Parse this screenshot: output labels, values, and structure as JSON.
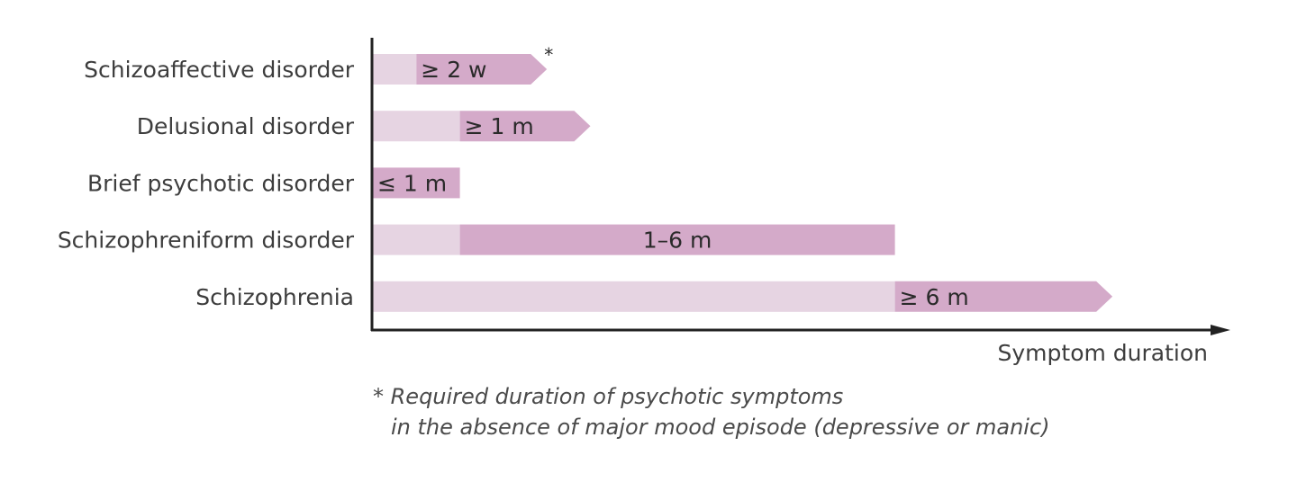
{
  "chart_data": {
    "type": "bar",
    "orientation": "horizontal",
    "xlabel": "Symptom duration",
    "colors": {
      "light": "#e6d4e2",
      "dark": "#d4aac9",
      "axis": "#222222"
    },
    "categories": [
      "Schizoaffective disorder",
      "Delusional disorder",
      "Brief psychotic disorder",
      "Schizophreniform disorder",
      "Schizophrenia"
    ],
    "bars": [
      {
        "category": "Schizoaffective disorder",
        "label": "≥ 2 w",
        "light_end": 0.5,
        "dark_end": 2.0,
        "open_ended": true,
        "asterisk": "*"
      },
      {
        "category": "Delusional disorder",
        "label": "≥ 1 m",
        "light_end": 1.0,
        "dark_end": 2.5,
        "open_ended": true,
        "asterisk": ""
      },
      {
        "category": "Brief psychotic disorder",
        "label": "≤ 1 m",
        "light_end": 0.0,
        "dark_end": 1.0,
        "open_ended": false,
        "asterisk": ""
      },
      {
        "category": "Schizophreniform disorder",
        "label": "1–6 m",
        "light_end": 1.0,
        "dark_end": 6.0,
        "open_ended": false,
        "asterisk": ""
      },
      {
        "category": "Schizophrenia",
        "label": "≥ 6 m",
        "light_end": 6.0,
        "dark_end": 8.5,
        "open_ended": true,
        "asterisk": ""
      }
    ]
  },
  "footnote": {
    "line1": "* Required duration of psychotic symptoms",
    "line2": "in the absence of major mood episode (depressive or manic)"
  }
}
